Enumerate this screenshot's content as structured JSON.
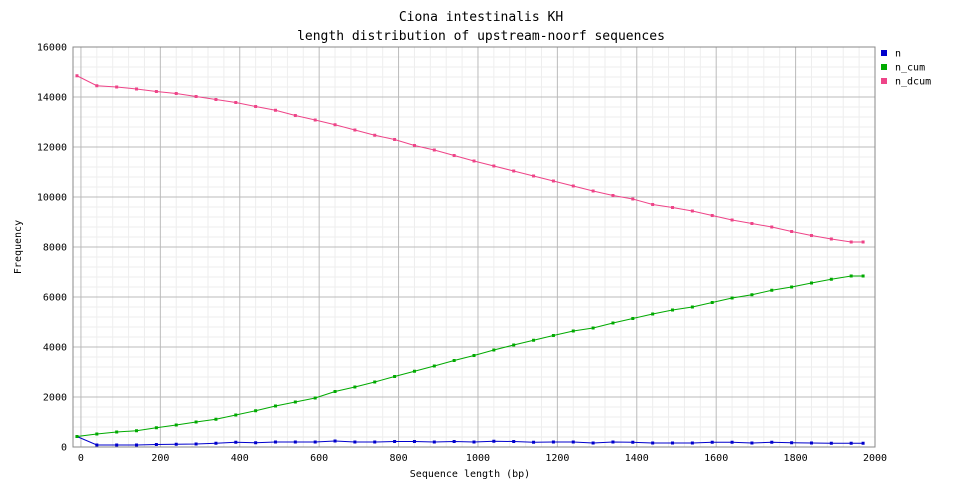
{
  "chart_data": {
    "type": "line",
    "title": "Ciona intestinalis KH",
    "subtitle": "length distribution of upstream-noorf sequences",
    "xlabel": "Sequence length (bp)",
    "ylabel": "Frequency",
    "xlim": [
      -20,
      2000
    ],
    "ylim": [
      0,
      16000
    ],
    "xticks": [
      0,
      200,
      400,
      600,
      800,
      1000,
      1200,
      1400,
      1600,
      1800,
      2000
    ],
    "yticks": [
      0,
      2000,
      4000,
      6000,
      8000,
      10000,
      12000,
      14000,
      16000
    ],
    "grid": true,
    "legend_position": "top-right",
    "x": [
      -10,
      40,
      90,
      140,
      190,
      240,
      290,
      340,
      390,
      440,
      490,
      540,
      590,
      640,
      690,
      740,
      790,
      840,
      890,
      940,
      990,
      1040,
      1090,
      1140,
      1190,
      1240,
      1290,
      1340,
      1390,
      1440,
      1490,
      1540,
      1590,
      1640,
      1690,
      1740,
      1790,
      1840,
      1890,
      1940,
      1970
    ],
    "series": [
      {
        "name": "n",
        "color": "#0000cc",
        "values": [
          420,
          80,
          80,
          80,
          100,
          110,
          120,
          150,
          190,
          170,
          200,
          200,
          200,
          240,
          200,
          200,
          220,
          220,
          200,
          220,
          200,
          230,
          220,
          190,
          200,
          200,
          160,
          200,
          190,
          160,
          160,
          160,
          190,
          190,
          160,
          190,
          170,
          160,
          150,
          150,
          150
        ]
      },
      {
        "name": "n_cum",
        "color": "#00aa00",
        "values": [
          420,
          520,
          600,
          650,
          770,
          880,
          1000,
          1110,
          1280,
          1450,
          1640,
          1800,
          1960,
          2220,
          2400,
          2600,
          2820,
          3030,
          3240,
          3460,
          3660,
          3880,
          4080,
          4270,
          4460,
          4640,
          4760,
          4960,
          5140,
          5320,
          5480,
          5600,
          5780,
          5960,
          6090,
          6270,
          6400,
          6560,
          6710,
          6840,
          6840
        ]
      },
      {
        "name": "n_dcum",
        "color": "#ee4488",
        "values": [
          14850,
          14450,
          14400,
          14320,
          14220,
          14140,
          14020,
          13900,
          13780,
          13620,
          13470,
          13260,
          13080,
          12890,
          12680,
          12470,
          12300,
          12060,
          11880,
          11660,
          11440,
          11240,
          11040,
          10840,
          10640,
          10440,
          10240,
          10060,
          9920,
          9700,
          9580,
          9440,
          9260,
          9080,
          8940,
          8800,
          8620,
          8460,
          8320,
          8200,
          8200
        ]
      }
    ]
  }
}
